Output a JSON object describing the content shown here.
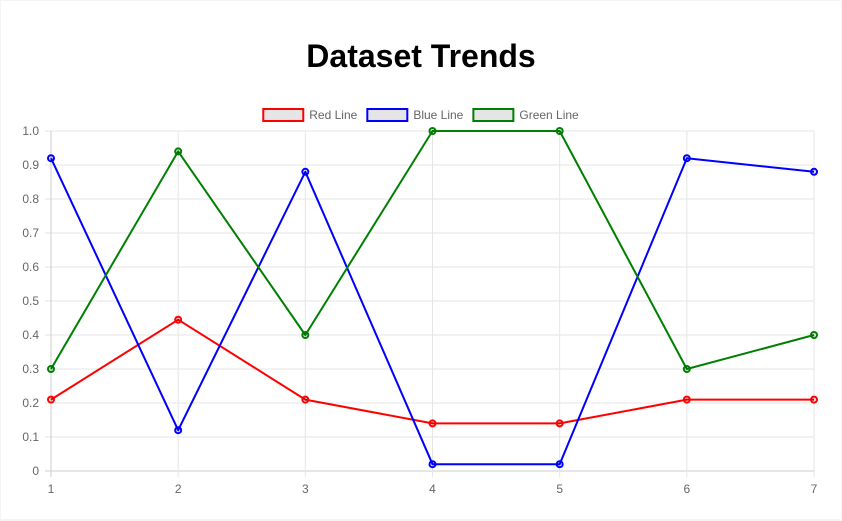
{
  "chart_data": {
    "type": "line",
    "title": "Dataset Trends",
    "xlabel": "",
    "ylabel": "",
    "categories": [
      "1",
      "2",
      "3",
      "4",
      "5",
      "6",
      "7"
    ],
    "ylim": [
      0,
      1.0
    ],
    "yticks": [
      "0",
      "0.1",
      "0.2",
      "0.3",
      "0.4",
      "0.5",
      "0.6",
      "0.7",
      "0.8",
      "0.9",
      "1.0"
    ],
    "grid": true,
    "legend_position": "top",
    "series": [
      {
        "name": "Red Line",
        "color": "#ff0000",
        "values": [
          0.21,
          0.445,
          0.21,
          0.14,
          0.14,
          0.21,
          0.21
        ]
      },
      {
        "name": "Blue Line",
        "color": "#0000ff",
        "values": [
          0.92,
          0.12,
          0.88,
          0.02,
          0.02,
          0.92,
          0.88
        ]
      },
      {
        "name": "Green Line",
        "color": "#008000",
        "values": [
          0.3,
          0.94,
          0.4,
          1.0,
          1.0,
          0.3,
          0.4
        ]
      }
    ]
  }
}
